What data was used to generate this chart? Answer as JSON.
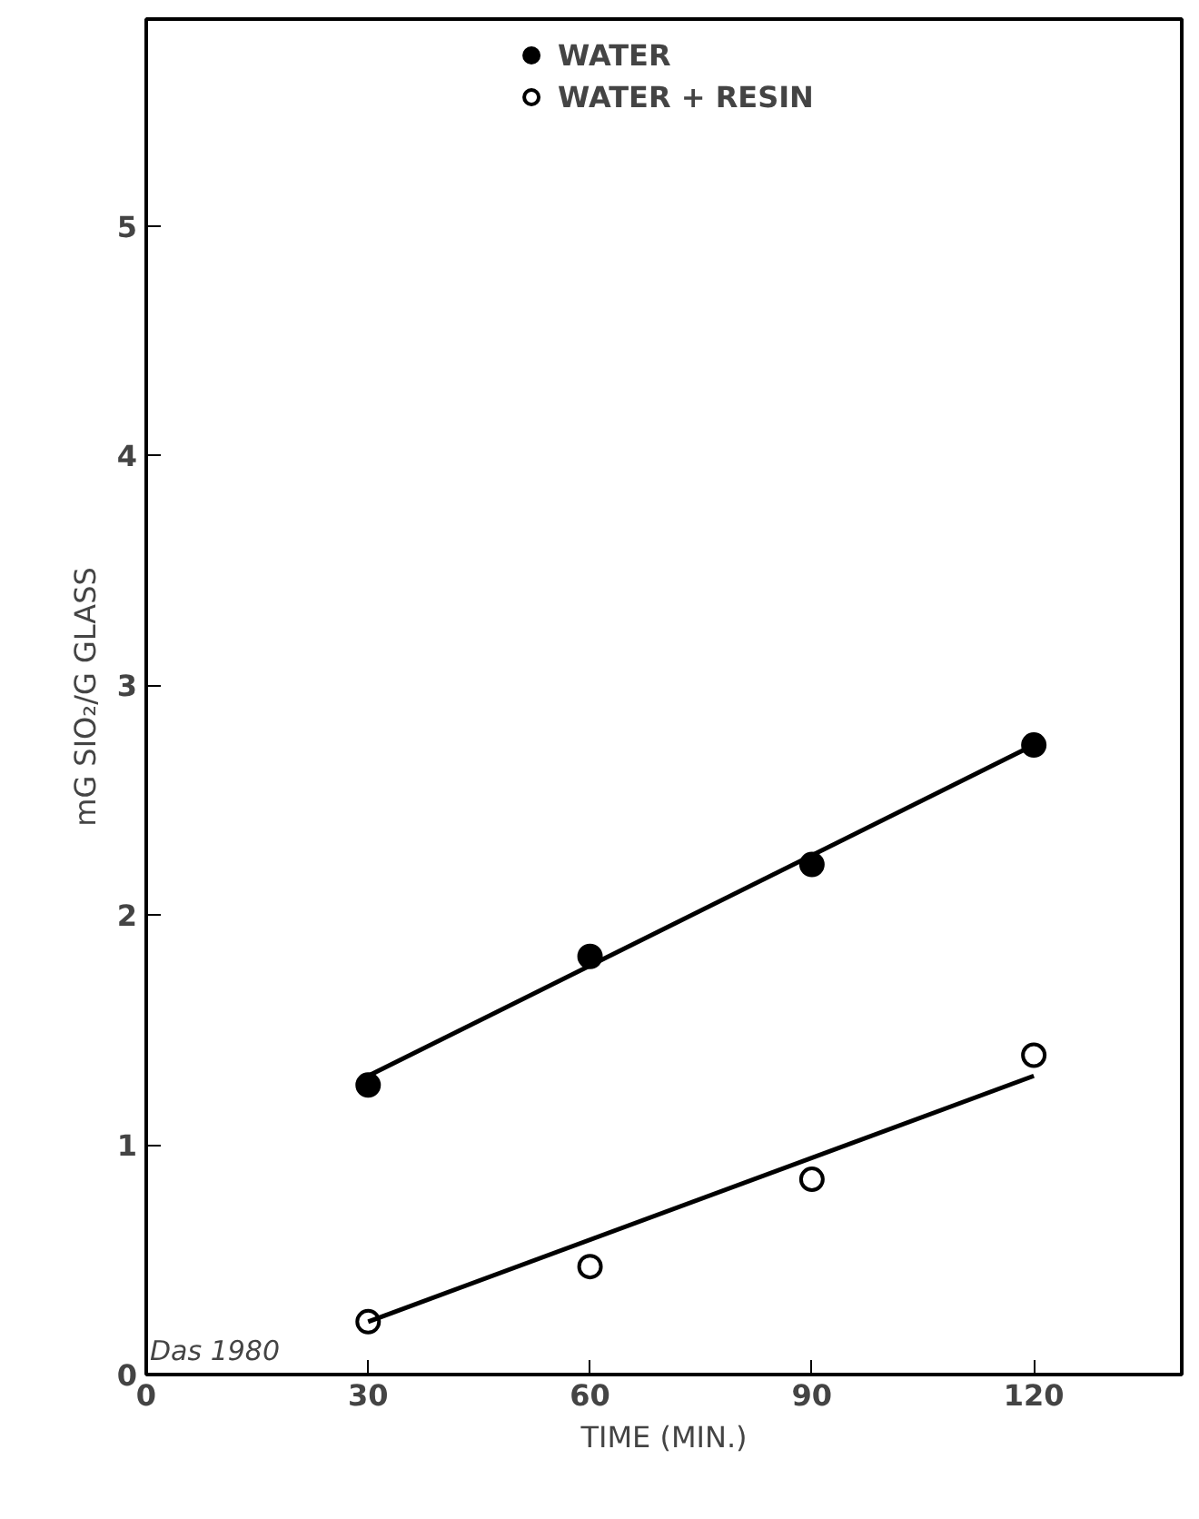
{
  "chart_data": {
    "type": "scatter",
    "xlabel": "TIME (MIN.)",
    "ylabel": "mG SIO₂/G GLASS",
    "xlim": [
      0,
      140
    ],
    "ylim": [
      0,
      5.9
    ],
    "xticks": [
      0,
      30,
      60,
      90,
      120
    ],
    "yticks": [
      0,
      1,
      2,
      3,
      4,
      5
    ],
    "grid": false,
    "legend": "top",
    "annotations": [
      "Das 1980"
    ],
    "series": [
      {
        "name": "WATER",
        "marker": "circle",
        "color": "#000000",
        "x": [
          30,
          60,
          90,
          120
        ],
        "values": [
          1.26,
          1.82,
          2.22,
          2.74
        ]
      },
      {
        "name": "WATER + RESIN",
        "marker": "circle",
        "color": "#ffffff",
        "x": [
          30,
          60,
          90,
          120
        ],
        "values": [
          0.23,
          0.47,
          0.85,
          1.39
        ]
      },
      {
        "type": "line",
        "color": "#000000",
        "line_style": "solid",
        "x": [
          30,
          120
        ],
        "values": [
          1.3,
          2.74
        ]
      },
      {
        "type": "line",
        "color": "#000000",
        "line_style": "solid",
        "x": [
          30,
          120
        ],
        "values": [
          0.23,
          1.3
        ]
      }
    ]
  }
}
